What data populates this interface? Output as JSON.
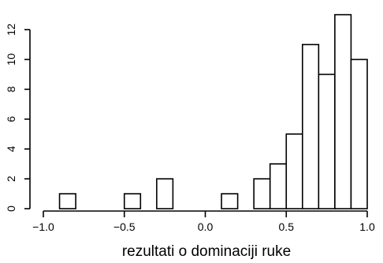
{
  "chart_data": {
    "type": "bar",
    "title": "",
    "xlabel": "rezultati o dominaciji ruke",
    "ylabel": "",
    "xlim": [
      -1.0,
      1.0
    ],
    "ylim": [
      0,
      13
    ],
    "x_ticks": [
      -1.0,
      -0.5,
      0.0,
      0.5,
      1.0
    ],
    "x_tick_labels": [
      "−1.0",
      "−0.5",
      "0.0",
      "0.5",
      "1.0"
    ],
    "y_ticks": [
      0,
      2,
      4,
      6,
      8,
      10,
      12
    ],
    "y_tick_labels": [
      "0",
      "2",
      "4",
      "6",
      "8",
      "10",
      "12"
    ],
    "bins": [
      {
        "x0": -0.9,
        "x1": -0.8,
        "count": 1
      },
      {
        "x0": -0.5,
        "x1": -0.4,
        "count": 1
      },
      {
        "x0": -0.3,
        "x1": -0.2,
        "count": 2
      },
      {
        "x0": 0.1,
        "x1": 0.2,
        "count": 1
      },
      {
        "x0": 0.3,
        "x1": 0.4,
        "count": 2
      },
      {
        "x0": 0.4,
        "x1": 0.5,
        "count": 3
      },
      {
        "x0": 0.5,
        "x1": 0.6,
        "count": 5
      },
      {
        "x0": 0.6,
        "x1": 0.7,
        "count": 11
      },
      {
        "x0": 0.7,
        "x1": 0.8,
        "count": 9
      },
      {
        "x0": 0.8,
        "x1": 0.9,
        "count": 13
      },
      {
        "x0": 0.9,
        "x1": 1.0,
        "count": 10
      }
    ],
    "grid": false,
    "legend": "none"
  }
}
